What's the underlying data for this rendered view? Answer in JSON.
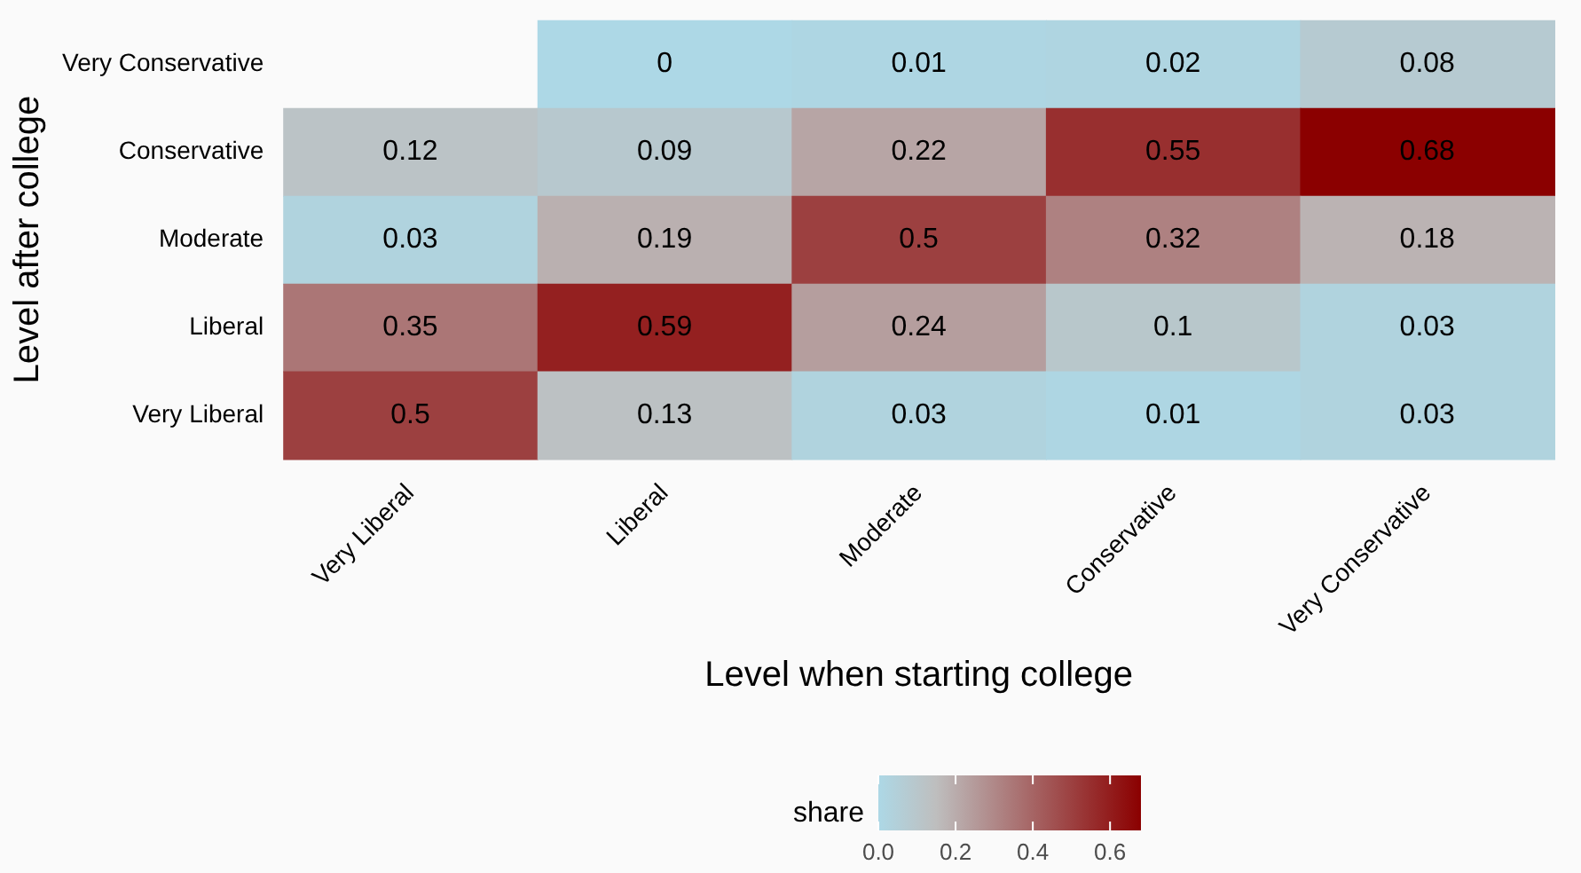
{
  "chart_data": {
    "type": "heatmap",
    "xlabel": "Level when starting college",
    "ylabel": "Level after college",
    "legend_title": "share",
    "categories": [
      "Very Liberal",
      "Liberal",
      "Moderate",
      "Conservative",
      "Very Conservative"
    ],
    "y_categories": [
      "Very Conservative",
      "Conservative",
      "Moderate",
      "Liberal",
      "Very Liberal"
    ],
    "cells": [
      [
        null,
        0,
        0.01,
        0.02,
        0.08
      ],
      [
        0.12,
        0.09,
        0.22,
        0.55,
        0.68
      ],
      [
        0.03,
        0.19,
        0.5,
        0.32,
        0.18
      ],
      [
        0.35,
        0.59,
        0.24,
        0.1,
        0.03
      ],
      [
        0.5,
        0.13,
        0.03,
        0.01,
        0.03
      ]
    ],
    "data_labels": true,
    "clim": [
      0,
      0.68
    ],
    "cticks": [
      {
        "value": 0,
        "label": "0.0"
      },
      {
        "value": 0.2,
        "label": "0.2"
      },
      {
        "value": 0.4,
        "label": "0.4"
      },
      {
        "value": 0.6,
        "label": "0.6"
      }
    ],
    "grid": false
  }
}
